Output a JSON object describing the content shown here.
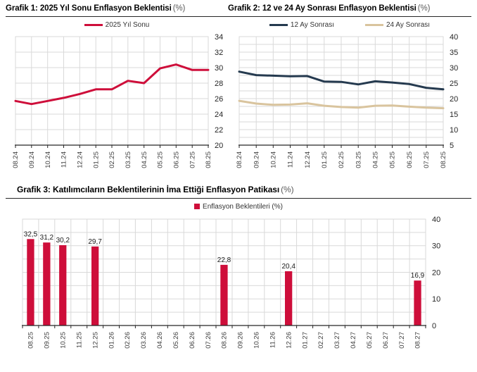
{
  "page": {
    "background": "#ffffff",
    "grid_color": "#d9d9d9",
    "axis_color": "#262626",
    "tick_label_color": "#404040"
  },
  "chart_data": [
    {
      "id": "grafik1",
      "type": "line",
      "title": "Grafik 1: 2025 Yıl Sonu Enflasyon Beklentisi",
      "unit": "(%)",
      "legend_position": "top-center",
      "legend": [
        {
          "label": "2025 Yıl Sonu",
          "color": "#ce0e3a",
          "marker": "line"
        }
      ],
      "categories": [
        "08.24",
        "09.24",
        "10.24",
        "11.24",
        "12.24",
        "01.25",
        "02.25",
        "03.25",
        "04.25",
        "05.25",
        "06.25",
        "07.25",
        "08.25"
      ],
      "series": [
        {
          "name": "2025 Yıl Sonu",
          "color": "#ce0e3a",
          "values": [
            25.7,
            25.3,
            25.7,
            26.1,
            26.6,
            27.2,
            27.2,
            28.3,
            28.0,
            29.9,
            30.4,
            29.7,
            29.7
          ]
        }
      ],
      "ylim": [
        20,
        34
      ],
      "yticks": [
        20,
        22,
        24,
        26,
        28,
        30,
        32,
        34
      ],
      "grid_step": 2,
      "y_axis_side": "right",
      "grid": true,
      "x_label_rotation": -90
    },
    {
      "id": "grafik2",
      "type": "line",
      "title": "Grafik 2: 12 ve 24 Ay Sonrası Enflasyon Beklentisi",
      "unit": "(%)",
      "legend_position": "top-center",
      "legend": [
        {
          "label": "12 Ay Sonrası",
          "color": "#253a4f",
          "marker": "line"
        },
        {
          "label": "24 Ay Sonrası",
          "color": "#d9c49e",
          "marker": "line"
        }
      ],
      "categories": [
        "08.24",
        "09.24",
        "10.24",
        "11.24",
        "12.24",
        "01.25",
        "02.25",
        "03.25",
        "04.25",
        "05.25",
        "06.25",
        "07.25",
        "08.25"
      ],
      "series": [
        {
          "name": "12 Ay Sonrası",
          "color": "#253a4f",
          "values": [
            28.7,
            27.6,
            27.4,
            27.2,
            27.3,
            25.5,
            25.4,
            24.6,
            25.6,
            25.2,
            24.7,
            23.5,
            23.0
          ]
        },
        {
          "name": "24 Ay Sonrası",
          "color": "#d9c49e",
          "values": [
            19.3,
            18.4,
            18.0,
            18.1,
            18.5,
            17.7,
            17.3,
            17.1,
            17.7,
            17.8,
            17.4,
            17.1,
            16.9
          ]
        }
      ],
      "ylim": [
        5,
        40
      ],
      "yticks": [
        5,
        10,
        15,
        20,
        25,
        30,
        35,
        40
      ],
      "grid_step": 2.5,
      "y_axis_side": "right",
      "grid": true,
      "x_label_rotation": -90
    },
    {
      "id": "grafik3",
      "type": "bar",
      "title": "Grafik 3: Katılımcıların Beklentilerinin İma Ettiği Enflasyon Patikası",
      "unit": "(%)",
      "legend_position": "top-center",
      "legend": [
        {
          "label": "Enflasyon Beklentileri (%)",
          "color": "#ce0e3a",
          "marker": "square"
        }
      ],
      "categories": [
        "08.25",
        "09.25",
        "10.25",
        "11.25",
        "12.25",
        "01.26",
        "02.26",
        "03.26",
        "04.26",
        "05.26",
        "06.26",
        "07.26",
        "08.26",
        "09.26",
        "10.26",
        "11.26",
        "12.26",
        "01.27",
        "02.27",
        "03.27",
        "04.27",
        "05.27",
        "06.27",
        "07.27",
        "08.27"
      ],
      "bar_color": "#ce0e3a",
      "values": [
        32.5,
        31.2,
        30.2,
        null,
        29.7,
        null,
        null,
        null,
        null,
        null,
        null,
        null,
        22.8,
        null,
        null,
        null,
        20.4,
        null,
        null,
        null,
        null,
        null,
        null,
        null,
        16.9
      ],
      "bar_labels": [
        "32,5",
        "31,2",
        "30,2",
        null,
        "29,7",
        null,
        null,
        null,
        null,
        null,
        null,
        null,
        "22,8",
        null,
        null,
        null,
        "20,4",
        null,
        null,
        null,
        null,
        null,
        null,
        null,
        "16,9"
      ],
      "ylim": [
        0,
        40
      ],
      "yticks": [
        0,
        10,
        20,
        30,
        40
      ],
      "grid_step": 5,
      "y_axis_side": "right",
      "grid": true,
      "x_label_rotation": -90
    }
  ]
}
